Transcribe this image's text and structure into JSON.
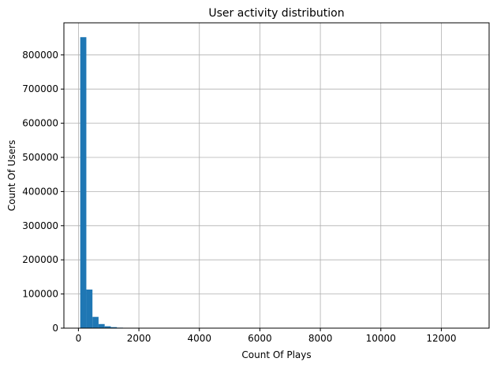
{
  "chart_data": {
    "type": "bar",
    "title": "User activity distribution",
    "xlabel": "Count Of Plays",
    "ylabel": "Count Of Users",
    "xlim": [
      -480,
      13580
    ],
    "ylim": [
      0,
      894000
    ],
    "xticks": [
      0,
      2000,
      4000,
      6000,
      8000,
      10000,
      12000
    ],
    "yticks": [
      0,
      100000,
      200000,
      300000,
      400000,
      500000,
      600000,
      700000,
      800000
    ],
    "grid": true,
    "bar_color": "#1f77b4",
    "bins": [
      {
        "x0": 60,
        "x1": 262,
        "value": 852000
      },
      {
        "x0": 262,
        "x1": 464,
        "value": 113000
      },
      {
        "x0": 464,
        "x1": 666,
        "value": 33000
      },
      {
        "x0": 666,
        "x1": 868,
        "value": 12000
      },
      {
        "x0": 868,
        "x1": 1070,
        "value": 5500
      },
      {
        "x0": 1070,
        "x1": 1272,
        "value": 3000
      },
      {
        "x0": 1272,
        "x1": 1474,
        "value": 1500
      },
      {
        "x0": 1474,
        "x1": 1676,
        "value": 800
      },
      {
        "x0": 1676,
        "x1": 1878,
        "value": 400
      },
      {
        "x0": 1878,
        "x1": 2080,
        "value": 200
      }
    ]
  }
}
